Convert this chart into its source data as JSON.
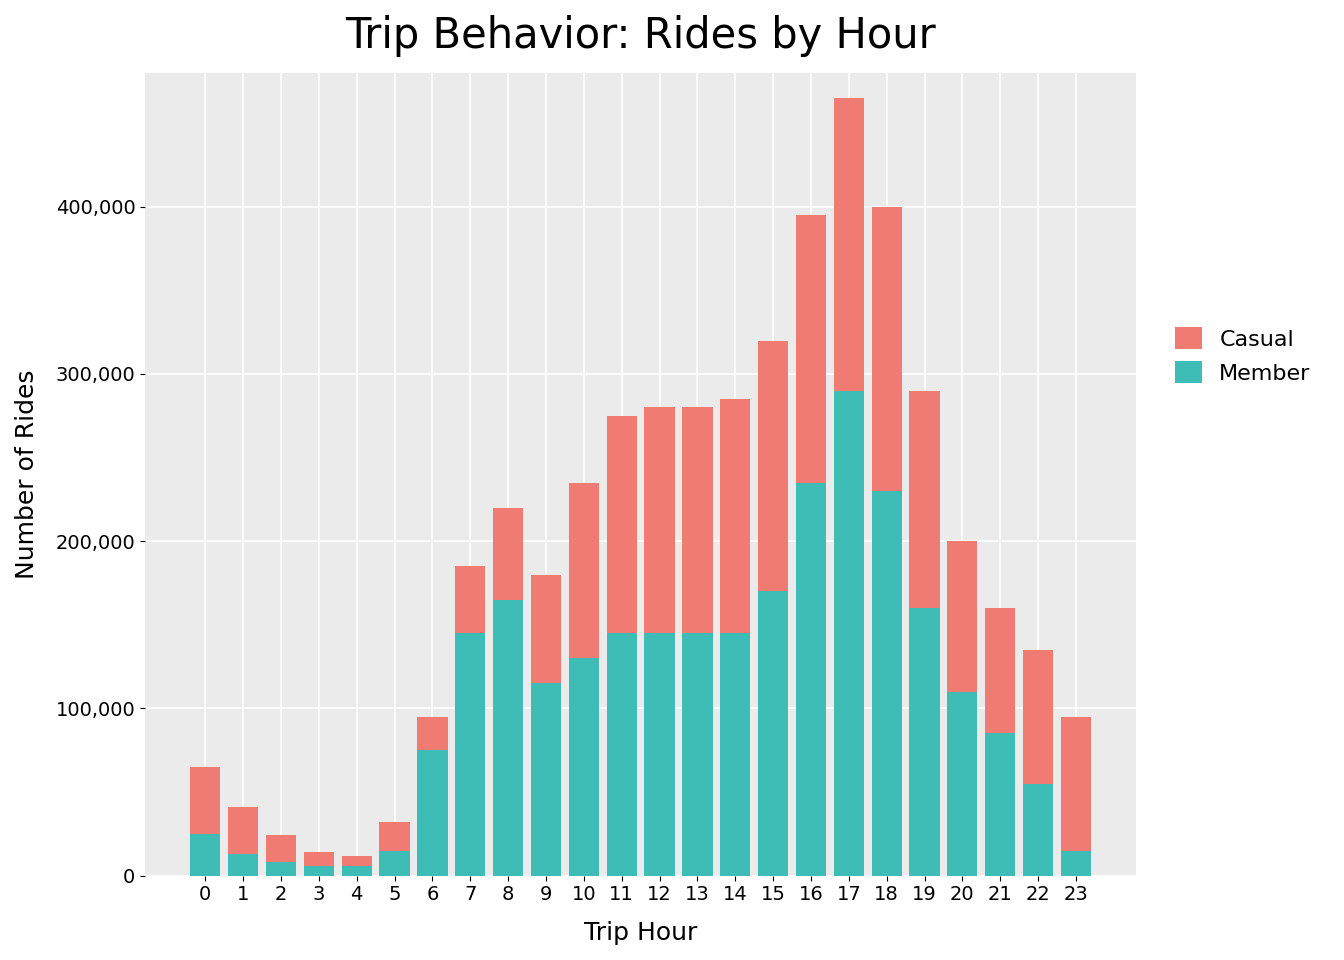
{
  "title": "Trip Behavior: Rides by Hour",
  "xlabel": "Trip Hour",
  "ylabel": "Number of Rides",
  "hours": [
    0,
    1,
    2,
    3,
    4,
    5,
    6,
    7,
    8,
    9,
    10,
    11,
    12,
    13,
    14,
    15,
    16,
    17,
    18,
    19,
    20,
    21,
    22,
    23
  ],
  "member": [
    25000,
    13000,
    8000,
    6000,
    6000,
    15000,
    75000,
    145000,
    165000,
    115000,
    130000,
    145000,
    145000,
    145000,
    145000,
    170000,
    235000,
    290000,
    230000,
    160000,
    110000,
    85000,
    55000,
    15000
  ],
  "casual": [
    40000,
    28000,
    16000,
    8000,
    6000,
    17000,
    20000,
    40000,
    55000,
    65000,
    105000,
    130000,
    135000,
    135000,
    140000,
    150000,
    160000,
    175000,
    170000,
    130000,
    90000,
    75000,
    80000,
    80000
  ],
  "casual_color": "#f07b72",
  "member_color": "#3dbdb5",
  "bg_color": "#ebebeb",
  "ylim": [
    0,
    480000
  ],
  "yticks": [
    0,
    100000,
    200000,
    300000,
    400000
  ],
  "title_fontsize": 30,
  "axis_label_fontsize": 18,
  "tick_fontsize": 14,
  "legend_fontsize": 16
}
